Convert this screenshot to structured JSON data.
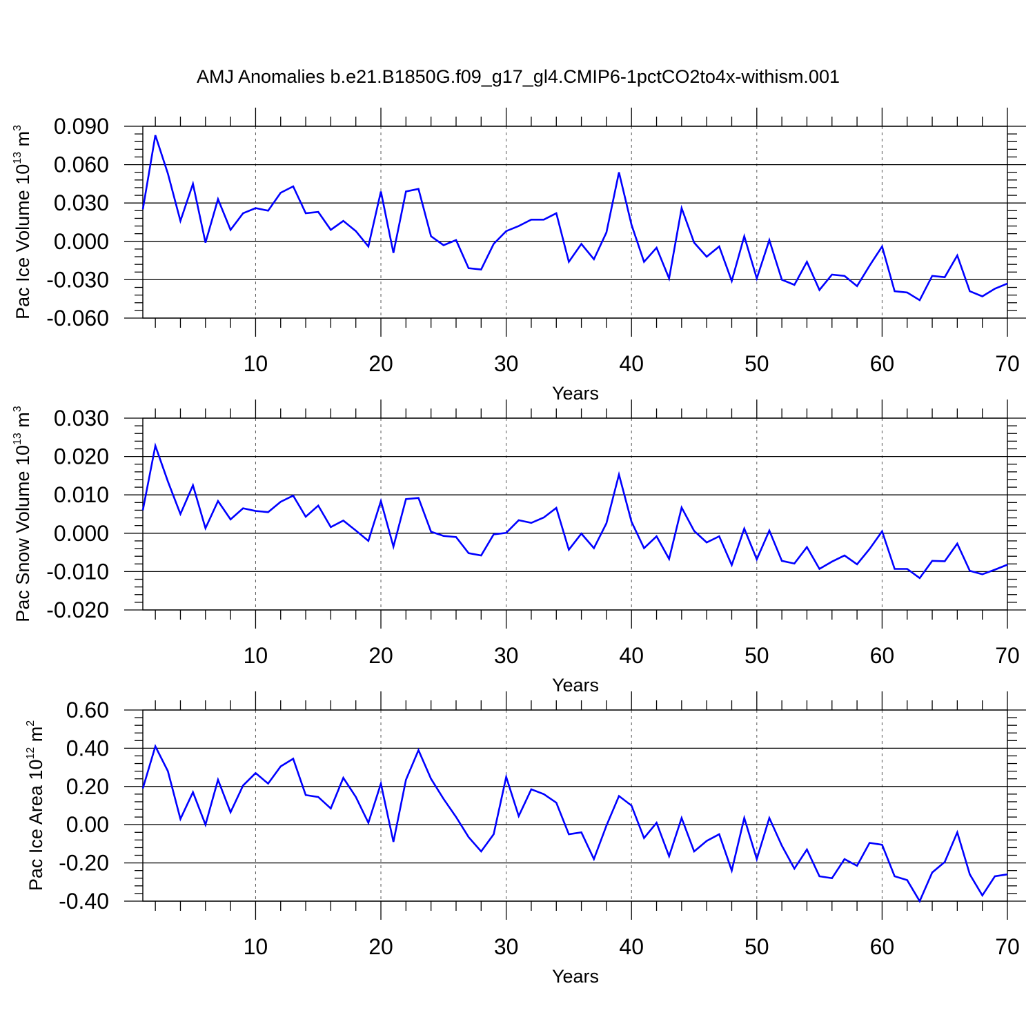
{
  "title": "AMJ Anomalies b.e21.B1850G.f09_g17_gl4.CMIP6-1pctCO2to4x-withism.001",
  "colors": {
    "line": "#0000ff",
    "axes": "#000000",
    "background": "#ffffff"
  },
  "chart_data": [
    {
      "type": "line",
      "xlabel": "Years",
      "ylabel": {
        "main": "Pac Ice Volume 10",
        "sup1": "13",
        "unit": " m",
        "sup2": "3"
      },
      "xlim": [
        1,
        70
      ],
      "ylim": [
        -0.06,
        0.09
      ],
      "x_ticks": [
        "10",
        "20",
        "30",
        "40",
        "50",
        "60",
        "70"
      ],
      "y_ticks": [
        "0.090",
        "0.060",
        "0.030",
        "0.000",
        "-0.030",
        "-0.060"
      ],
      "grid": "dashed vertical at major x ticks",
      "series": [
        {
          "x": [
            1,
            2,
            3,
            4,
            5,
            6,
            7,
            8,
            9,
            10,
            11,
            12,
            13,
            14,
            15,
            16,
            17,
            18,
            19,
            20,
            21,
            22,
            23,
            24,
            25,
            26,
            27,
            28,
            29,
            30,
            31,
            32,
            33,
            34,
            35,
            36,
            37,
            38,
            39,
            40,
            41,
            42,
            43,
            44,
            45,
            46,
            47,
            48,
            49,
            50,
            51,
            52,
            53,
            54,
            55,
            56,
            57,
            58,
            59,
            60,
            61,
            62,
            63,
            64,
            65,
            66,
            67,
            68,
            69,
            70
          ],
          "values": [
            0.025,
            0.083,
            0.053,
            0.016,
            0.045,
            -0.001,
            0.033,
            0.009,
            0.022,
            0.026,
            0.024,
            0.038,
            0.043,
            0.022,
            0.023,
            0.009,
            0.016,
            0.008,
            -0.004,
            0.039,
            -0.009,
            0.039,
            0.041,
            0.004,
            -0.003,
            0.001,
            -0.021,
            -0.022,
            -0.002,
            0.008,
            0.012,
            0.017,
            0.017,
            0.022,
            -0.016,
            -0.002,
            -0.014,
            0.007,
            0.054,
            0.013,
            -0.016,
            -0.005,
            -0.029,
            0.026,
            -0.001,
            -0.012,
            -0.004,
            -0.031,
            0.004,
            -0.029,
            0.001,
            -0.03,
            -0.034,
            -0.016,
            -0.038,
            -0.026,
            -0.027,
            -0.035,
            -0.019,
            -0.004,
            -0.039,
            -0.04,
            -0.046,
            -0.027,
            -0.028,
            -0.011,
            -0.039,
            -0.043,
            -0.037,
            -0.033
          ]
        }
      ]
    },
    {
      "type": "line",
      "xlabel": "Years",
      "ylabel": {
        "main": "Pac Snow Volume 10",
        "sup1": "13",
        "unit": " m",
        "sup2": "3"
      },
      "xlim": [
        1,
        70
      ],
      "ylim": [
        -0.02,
        0.03
      ],
      "x_ticks": [
        "10",
        "20",
        "30",
        "40",
        "50",
        "60",
        "70"
      ],
      "y_ticks": [
        "0.030",
        "0.020",
        "0.010",
        "0.000",
        "-0.010",
        "-0.020"
      ],
      "grid": "dashed vertical at major x ticks",
      "series": [
        {
          "x": [
            1,
            2,
            3,
            4,
            5,
            6,
            7,
            8,
            9,
            10,
            11,
            12,
            13,
            14,
            15,
            16,
            17,
            18,
            19,
            20,
            21,
            22,
            23,
            24,
            25,
            26,
            27,
            28,
            29,
            30,
            31,
            32,
            33,
            34,
            35,
            36,
            37,
            38,
            39,
            40,
            41,
            42,
            43,
            44,
            45,
            46,
            47,
            48,
            49,
            50,
            51,
            52,
            53,
            54,
            55,
            56,
            57,
            58,
            59,
            60,
            61,
            62,
            63,
            64,
            65,
            66,
            67,
            68,
            69,
            70
          ],
          "values": [
            0.006,
            0.0228,
            0.0135,
            0.005,
            0.0125,
            0.0013,
            0.0084,
            0.0036,
            0.0065,
            0.0058,
            0.0055,
            0.0082,
            0.0098,
            0.0043,
            0.0072,
            0.0016,
            0.0033,
            0.0007,
            -0.002,
            0.0084,
            -0.0035,
            0.0089,
            0.0092,
            0.0004,
            -0.0007,
            -0.001,
            -0.0052,
            -0.0058,
            -0.0003,
            0.0001,
            0.0034,
            0.0027,
            0.0041,
            0.0066,
            -0.0043,
            -0.0001,
            -0.0039,
            0.0026,
            0.0153,
            0.003,
            -0.0039,
            -0.0008,
            -0.0067,
            0.0067,
            0.0006,
            -0.0024,
            -0.0008,
            -0.0083,
            0.0012,
            -0.0068,
            0.0007,
            -0.0072,
            -0.0079,
            -0.0036,
            -0.0093,
            -0.0074,
            -0.0058,
            -0.0081,
            -0.0041,
            0.0005,
            -0.0093,
            -0.0093,
            -0.0117,
            -0.0072,
            -0.0073,
            -0.0027,
            -0.0098,
            -0.0107,
            -0.0095,
            -0.0082
          ]
        }
      ]
    },
    {
      "type": "line",
      "xlabel": "Years",
      "ylabel": {
        "main": "Pac Ice Area 10",
        "sup1": "12",
        "unit": " m",
        "sup2": "2"
      },
      "xlim": [
        1,
        70
      ],
      "ylim": [
        -0.4,
        0.6
      ],
      "x_ticks": [
        "10",
        "20",
        "30",
        "40",
        "50",
        "60",
        "70"
      ],
      "y_ticks": [
        "0.60",
        "0.40",
        "0.20",
        "0.00",
        "-0.20",
        "-0.40"
      ],
      "grid": "dashed vertical at major x ticks",
      "series": [
        {
          "x": [
            1,
            2,
            3,
            4,
            5,
            6,
            7,
            8,
            9,
            10,
            11,
            12,
            13,
            14,
            15,
            16,
            17,
            18,
            19,
            20,
            21,
            22,
            23,
            24,
            25,
            26,
            27,
            28,
            29,
            30,
            31,
            32,
            33,
            34,
            35,
            36,
            37,
            38,
            39,
            40,
            41,
            42,
            43,
            44,
            45,
            46,
            47,
            48,
            49,
            50,
            51,
            52,
            53,
            54,
            55,
            56,
            57,
            58,
            59,
            60,
            61,
            62,
            63,
            64,
            65,
            66,
            67,
            68,
            69,
            70
          ],
          "values": [
            0.19,
            0.41,
            0.28,
            0.03,
            0.17,
            0.0,
            0.235,
            0.065,
            0.205,
            0.27,
            0.215,
            0.305,
            0.345,
            0.155,
            0.145,
            0.085,
            0.245,
            0.145,
            0.01,
            0.215,
            -0.09,
            0.235,
            0.39,
            0.24,
            0.135,
            0.04,
            -0.065,
            -0.14,
            -0.05,
            0.25,
            0.045,
            0.185,
            0.16,
            0.115,
            -0.05,
            -0.04,
            -0.18,
            -0.005,
            0.15,
            0.1,
            -0.07,
            0.01,
            -0.165,
            0.035,
            -0.14,
            -0.085,
            -0.05,
            -0.24,
            0.035,
            -0.18,
            0.035,
            -0.11,
            -0.23,
            -0.13,
            -0.27,
            -0.28,
            -0.18,
            -0.215,
            -0.095,
            -0.105,
            -0.27,
            -0.29,
            -0.4,
            -0.25,
            -0.195,
            -0.04,
            -0.26,
            -0.37,
            -0.27,
            -0.26
          ]
        }
      ]
    }
  ]
}
